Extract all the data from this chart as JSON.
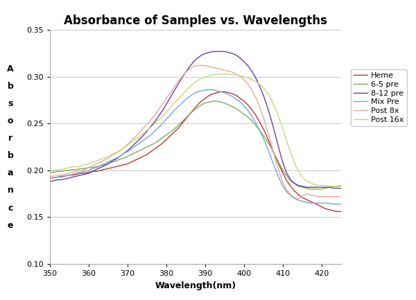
{
  "title": "Absorbance of Samples vs. Wavelengths",
  "xlabel": "Wavelength(nm)",
  "ylabel_chars": [
    "A",
    "b",
    "s",
    "o",
    "r",
    "b",
    "a",
    "n",
    "c",
    "e"
  ],
  "xlim": [
    350,
    425
  ],
  "ylim": [
    0.1,
    0.35
  ],
  "yticks": [
    0.1,
    0.15,
    0.2,
    0.25,
    0.3,
    0.35
  ],
  "xticks": [
    350,
    360,
    370,
    380,
    390,
    400,
    410,
    420
  ],
  "series": {
    "Heme": {
      "color": "#c0392b",
      "wavelengths": [
        350,
        351,
        352,
        353,
        354,
        355,
        356,
        357,
        358,
        359,
        360,
        361,
        362,
        363,
        364,
        365,
        366,
        367,
        368,
        369,
        370,
        371,
        372,
        373,
        374,
        375,
        376,
        377,
        378,
        379,
        380,
        381,
        382,
        383,
        384,
        385,
        386,
        387,
        388,
        389,
        390,
        391,
        392,
        393,
        394,
        395,
        396,
        397,
        398,
        399,
        400,
        401,
        402,
        403,
        404,
        405,
        406,
        407,
        408,
        409,
        410,
        411,
        412,
        413,
        414,
        415,
        416,
        417,
        418,
        419,
        420,
        421,
        422,
        423,
        424,
        425
      ],
      "absorbance": [
        0.192,
        0.192,
        0.193,
        0.193,
        0.194,
        0.195,
        0.195,
        0.196,
        0.197,
        0.197,
        0.198,
        0.199,
        0.199,
        0.2,
        0.201,
        0.202,
        0.203,
        0.204,
        0.205,
        0.206,
        0.207,
        0.209,
        0.211,
        0.213,
        0.215,
        0.217,
        0.22,
        0.223,
        0.226,
        0.229,
        0.233,
        0.237,
        0.241,
        0.245,
        0.25,
        0.255,
        0.26,
        0.265,
        0.27,
        0.274,
        0.277,
        0.28,
        0.282,
        0.283,
        0.284,
        0.284,
        0.283,
        0.282,
        0.28,
        0.277,
        0.274,
        0.27,
        0.265,
        0.259,
        0.252,
        0.244,
        0.235,
        0.225,
        0.215,
        0.206,
        0.197,
        0.189,
        0.183,
        0.178,
        0.174,
        0.171,
        0.169,
        0.167,
        0.165,
        0.163,
        0.161,
        0.159,
        0.158,
        0.157,
        0.156,
        0.156
      ]
    },
    "6-5 pre": {
      "color": "#7daa57",
      "wavelengths": [
        350,
        351,
        352,
        353,
        354,
        355,
        356,
        357,
        358,
        359,
        360,
        361,
        362,
        363,
        364,
        365,
        366,
        367,
        368,
        369,
        370,
        371,
        372,
        373,
        374,
        375,
        376,
        377,
        378,
        379,
        380,
        381,
        382,
        383,
        384,
        385,
        386,
        387,
        388,
        389,
        390,
        391,
        392,
        393,
        394,
        395,
        396,
        397,
        398,
        399,
        400,
        401,
        402,
        403,
        404,
        405,
        406,
        407,
        408,
        409,
        410,
        411,
        412,
        413,
        414,
        415,
        416,
        417,
        418,
        419,
        420,
        421,
        422,
        423,
        424,
        425
      ],
      "absorbance": [
        0.198,
        0.198,
        0.199,
        0.199,
        0.2,
        0.2,
        0.201,
        0.201,
        0.202,
        0.202,
        0.203,
        0.203,
        0.204,
        0.205,
        0.206,
        0.207,
        0.209,
        0.21,
        0.212,
        0.213,
        0.215,
        0.217,
        0.219,
        0.221,
        0.223,
        0.225,
        0.227,
        0.229,
        0.232,
        0.235,
        0.238,
        0.241,
        0.244,
        0.248,
        0.252,
        0.256,
        0.26,
        0.264,
        0.267,
        0.27,
        0.272,
        0.273,
        0.274,
        0.274,
        0.273,
        0.272,
        0.27,
        0.268,
        0.266,
        0.263,
        0.26,
        0.257,
        0.253,
        0.248,
        0.243,
        0.237,
        0.231,
        0.224,
        0.216,
        0.208,
        0.2,
        0.194,
        0.189,
        0.186,
        0.183,
        0.182,
        0.181,
        0.18,
        0.18,
        0.18,
        0.18,
        0.181,
        0.182,
        0.183,
        0.183,
        0.184
      ]
    },
    "8-12 pre": {
      "color": "#6a3ba3",
      "wavelengths": [
        350,
        351,
        352,
        353,
        354,
        355,
        356,
        357,
        358,
        359,
        360,
        361,
        362,
        363,
        364,
        365,
        366,
        367,
        368,
        369,
        370,
        371,
        372,
        373,
        374,
        375,
        376,
        377,
        378,
        379,
        380,
        381,
        382,
        383,
        384,
        385,
        386,
        387,
        388,
        389,
        390,
        391,
        392,
        393,
        394,
        395,
        396,
        397,
        398,
        399,
        400,
        401,
        402,
        403,
        404,
        405,
        406,
        407,
        408,
        409,
        410,
        411,
        412,
        413,
        414,
        415,
        416,
        417,
        418,
        419,
        420,
        421,
        422,
        423,
        424,
        425
      ],
      "absorbance": [
        0.188,
        0.189,
        0.19,
        0.19,
        0.191,
        0.192,
        0.193,
        0.194,
        0.195,
        0.196,
        0.197,
        0.199,
        0.201,
        0.203,
        0.205,
        0.207,
        0.21,
        0.212,
        0.215,
        0.218,
        0.221,
        0.225,
        0.229,
        0.233,
        0.237,
        0.242,
        0.247,
        0.252,
        0.258,
        0.264,
        0.271,
        0.278,
        0.285,
        0.292,
        0.299,
        0.305,
        0.311,
        0.316,
        0.32,
        0.323,
        0.325,
        0.326,
        0.327,
        0.327,
        0.327,
        0.327,
        0.326,
        0.325,
        0.323,
        0.32,
        0.316,
        0.312,
        0.306,
        0.299,
        0.29,
        0.28,
        0.268,
        0.254,
        0.239,
        0.223,
        0.208,
        0.197,
        0.19,
        0.186,
        0.184,
        0.183,
        0.182,
        0.182,
        0.182,
        0.182,
        0.182,
        0.182,
        0.182,
        0.181,
        0.181,
        0.181
      ]
    },
    "Mix Pre": {
      "color": "#6fa8d8",
      "wavelengths": [
        350,
        351,
        352,
        353,
        354,
        355,
        356,
        357,
        358,
        359,
        360,
        361,
        362,
        363,
        364,
        365,
        366,
        367,
        368,
        369,
        370,
        371,
        372,
        373,
        374,
        375,
        376,
        377,
        378,
        379,
        380,
        381,
        382,
        383,
        384,
        385,
        386,
        387,
        388,
        389,
        390,
        391,
        392,
        393,
        394,
        395,
        396,
        397,
        398,
        399,
        400,
        401,
        402,
        403,
        404,
        405,
        406,
        407,
        408,
        409,
        410,
        411,
        412,
        413,
        414,
        415,
        416,
        417,
        418,
        419,
        420,
        421,
        422,
        423,
        424,
        425
      ],
      "absorbance": [
        0.192,
        0.192,
        0.193,
        0.194,
        0.194,
        0.195,
        0.196,
        0.197,
        0.198,
        0.199,
        0.2,
        0.202,
        0.203,
        0.205,
        0.207,
        0.209,
        0.211,
        0.213,
        0.215,
        0.218,
        0.22,
        0.223,
        0.226,
        0.229,
        0.232,
        0.235,
        0.238,
        0.242,
        0.246,
        0.25,
        0.255,
        0.259,
        0.264,
        0.268,
        0.272,
        0.276,
        0.279,
        0.282,
        0.284,
        0.285,
        0.286,
        0.286,
        0.286,
        0.285,
        0.284,
        0.283,
        0.281,
        0.279,
        0.276,
        0.273,
        0.269,
        0.264,
        0.258,
        0.251,
        0.243,
        0.234,
        0.224,
        0.213,
        0.202,
        0.192,
        0.183,
        0.177,
        0.173,
        0.17,
        0.168,
        0.167,
        0.166,
        0.165,
        0.165,
        0.165,
        0.165,
        0.165,
        0.165,
        0.164,
        0.164,
        0.164
      ]
    },
    "Post 8x": {
      "color": "#e8a89c",
      "wavelengths": [
        350,
        351,
        352,
        353,
        354,
        355,
        356,
        357,
        358,
        359,
        360,
        361,
        362,
        363,
        364,
        365,
        366,
        367,
        368,
        369,
        370,
        371,
        372,
        373,
        374,
        375,
        376,
        377,
        378,
        379,
        380,
        381,
        382,
        383,
        384,
        385,
        386,
        387,
        388,
        389,
        390,
        391,
        392,
        393,
        394,
        395,
        396,
        397,
        398,
        399,
        400,
        401,
        402,
        403,
        404,
        405,
        406,
        407,
        408,
        409,
        410,
        411,
        412,
        413,
        414,
        415,
        416,
        417,
        418,
        419,
        420,
        421,
        422,
        423,
        424,
        425
      ],
      "absorbance": [
        0.193,
        0.194,
        0.195,
        0.195,
        0.196,
        0.197,
        0.198,
        0.199,
        0.2,
        0.201,
        0.203,
        0.205,
        0.207,
        0.209,
        0.211,
        0.213,
        0.216,
        0.218,
        0.221,
        0.224,
        0.228,
        0.232,
        0.236,
        0.24,
        0.245,
        0.249,
        0.254,
        0.259,
        0.265,
        0.271,
        0.277,
        0.283,
        0.289,
        0.295,
        0.3,
        0.305,
        0.308,
        0.311,
        0.312,
        0.312,
        0.312,
        0.311,
        0.31,
        0.309,
        0.308,
        0.307,
        0.306,
        0.305,
        0.303,
        0.3,
        0.297,
        0.292,
        0.286,
        0.278,
        0.268,
        0.256,
        0.243,
        0.228,
        0.213,
        0.199,
        0.187,
        0.179,
        0.174,
        0.171,
        0.169,
        0.173,
        0.175,
        0.174,
        0.173,
        0.172,
        0.172,
        0.172,
        0.172,
        0.172,
        0.172,
        0.172
      ]
    },
    "Post 16x": {
      "color": "#c8d87a",
      "wavelengths": [
        350,
        351,
        352,
        353,
        354,
        355,
        356,
        357,
        358,
        359,
        360,
        361,
        362,
        363,
        364,
        365,
        366,
        367,
        368,
        369,
        370,
        371,
        372,
        373,
        374,
        375,
        376,
        377,
        378,
        379,
        380,
        381,
        382,
        383,
        384,
        385,
        386,
        387,
        388,
        389,
        390,
        391,
        392,
        393,
        394,
        395,
        396,
        397,
        398,
        399,
        400,
        401,
        402,
        403,
        404,
        405,
        406,
        407,
        408,
        409,
        410,
        411,
        412,
        413,
        414,
        415,
        416,
        417,
        418,
        419,
        420,
        421,
        422,
        423,
        424,
        425
      ],
      "absorbance": [
        0.2,
        0.2,
        0.201,
        0.201,
        0.202,
        0.203,
        0.204,
        0.204,
        0.205,
        0.206,
        0.207,
        0.209,
        0.21,
        0.212,
        0.213,
        0.215,
        0.217,
        0.219,
        0.221,
        0.224,
        0.227,
        0.23,
        0.233,
        0.236,
        0.239,
        0.243,
        0.246,
        0.25,
        0.254,
        0.258,
        0.262,
        0.267,
        0.272,
        0.276,
        0.281,
        0.285,
        0.289,
        0.293,
        0.296,
        0.298,
        0.3,
        0.301,
        0.302,
        0.303,
        0.303,
        0.303,
        0.303,
        0.302,
        0.302,
        0.301,
        0.3,
        0.299,
        0.297,
        0.295,
        0.292,
        0.288,
        0.283,
        0.276,
        0.267,
        0.256,
        0.244,
        0.231,
        0.219,
        0.208,
        0.199,
        0.193,
        0.189,
        0.187,
        0.185,
        0.184,
        0.184,
        0.184,
        0.183,
        0.183,
        0.183,
        0.183
      ]
    }
  },
  "background_color": "#ffffff",
  "grid_color": "#c8c8c8",
  "title_fontsize": 12,
  "axis_label_fontsize": 9,
  "tick_fontsize": 8,
  "legend_fontsize": 8,
  "line_width": 1.0
}
